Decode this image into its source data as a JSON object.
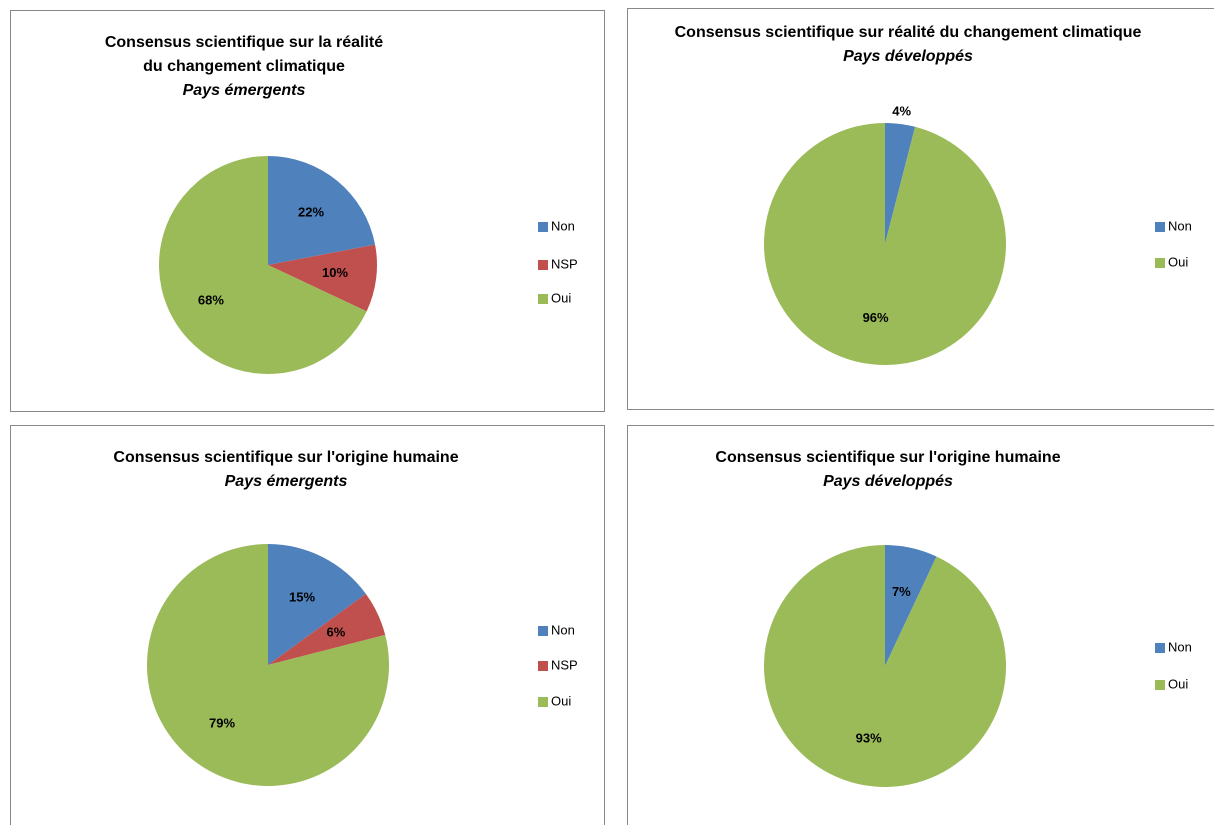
{
  "chart_data": [
    {
      "type": "pie",
      "title": "Consensus scientifique sur la réalité du changement climatique",
      "subtitle": "Pays émergents",
      "categories": [
        "Non",
        "NSP",
        "Oui"
      ],
      "values": [
        22,
        10,
        68
      ],
      "value_labels": [
        "22%",
        "10%",
        "68%"
      ],
      "colors": [
        "#4f81bd",
        "#c0504d",
        "#9bbb59"
      ],
      "legend": "right"
    },
    {
      "type": "pie",
      "title": "Consensus scientifique sur réalité du changement climatique",
      "subtitle": "Pays développés",
      "categories": [
        "Non",
        "Oui"
      ],
      "values": [
        4,
        96
      ],
      "value_labels": [
        "4%",
        "96%"
      ],
      "colors": [
        "#4f81bd",
        "#9bbb59"
      ],
      "legend": "right"
    },
    {
      "type": "pie",
      "title": "Consensus  scientifique sur l'origine humaine",
      "subtitle": "Pays émergents",
      "categories": [
        "Non",
        "NSP",
        "Oui"
      ],
      "values": [
        15,
        6,
        79
      ],
      "value_labels": [
        "15%",
        "6%",
        "79%"
      ],
      "colors": [
        "#4f81bd",
        "#c0504d",
        "#9bbb59"
      ],
      "legend": "right"
    },
    {
      "type": "pie",
      "title": "Consensus scientifique sur l'origine humaine",
      "subtitle": "Pays développés",
      "categories": [
        "Non",
        "Oui"
      ],
      "values": [
        7,
        93
      ],
      "value_labels": [
        "7%",
        "93%"
      ],
      "colors": [
        "#4f81bd",
        "#9bbb59"
      ],
      "legend": "right"
    }
  ]
}
